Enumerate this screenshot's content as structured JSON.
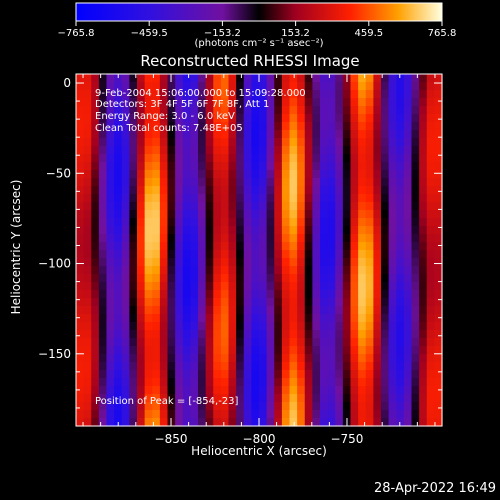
{
  "title": "Reconstructed RHESSI Image",
  "footer_date": "28-Apr-2022 16:49",
  "colorbar": {
    "tick_labels": [
      "-765.8",
      "-459.5",
      "-153.2",
      "153.2",
      "459.5",
      "765.8"
    ],
    "unit_label": "(photons cm⁻² s⁻¹ asec⁻²)",
    "range": [
      -765.8,
      765.8
    ]
  },
  "annotations": {
    "time": "9-Feb-2004 15:06:00.000 to 15:09:28.000",
    "detectors": "Detectors: 3F 4F 5F 6F 7F 8F, Att 1",
    "energy": "Energy Range: 3.0 - 6.0 keV",
    "clean": "Clean    Total counts: 7.48E+05",
    "peak": "Position of Peak = [-854,-23]"
  },
  "chart_data": {
    "type": "heatmap",
    "title": "Reconstructed RHESSI Image",
    "xlabel": "Heliocentric X (arcsec)",
    "ylabel": "Heliocentric Y (arcsec)",
    "xlim": [
      -904,
      -696
    ],
    "ylim": [
      -190,
      5
    ],
    "x_ticks": [
      -850,
      -800,
      -750
    ],
    "y_ticks": [
      0,
      -50,
      -100,
      -150
    ],
    "peak_position": [
      -854,
      -23
    ],
    "stripes": [
      {
        "x": -898,
        "sign": 1,
        "amp": 0.55
      },
      {
        "x": -880,
        "sign": -1,
        "amp": 0.9
      },
      {
        "x": -861,
        "sign": 1,
        "amp": 1.0
      },
      {
        "x": -840,
        "sign": -1,
        "amp": 0.9
      },
      {
        "x": -821,
        "sign": 1,
        "amp": 0.75
      },
      {
        "x": -801,
        "sign": -1,
        "amp": 0.9
      },
      {
        "x": -781,
        "sign": 1,
        "amp": 0.95
      },
      {
        "x": -761,
        "sign": -1,
        "amp": 0.85
      },
      {
        "x": -740,
        "sign": 1,
        "amp": 0.95
      },
      {
        "x": -720,
        "sign": -1,
        "amp": 0.8
      },
      {
        "x": -702,
        "sign": 1,
        "amp": 0.55
      }
    ]
  }
}
